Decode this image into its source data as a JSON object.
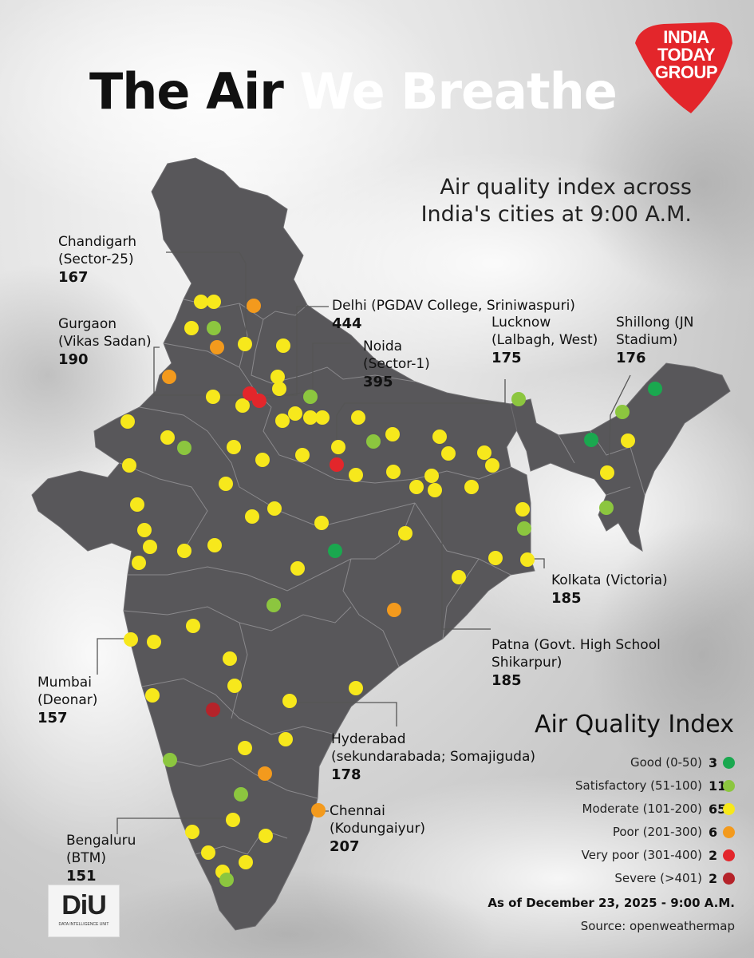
{
  "title": {
    "part1": "The Air",
    "part2": "We Breathe"
  },
  "subtitle": {
    "line1": "Air quality index across",
    "line2": "India's cities at 9:00 A.M."
  },
  "logo": {
    "line1": "INDIA",
    "line2": "TODAY",
    "line3": "GROUP"
  },
  "callouts": [
    {
      "id": "chandigarh",
      "name1": "Chandigarh",
      "name2": "(Sector-25)",
      "value": "167"
    },
    {
      "id": "gurgaon",
      "name1": "Gurgaon",
      "name2": "(Vikas Sadan)",
      "value": "190"
    },
    {
      "id": "delhi",
      "name1": "Delhi (PGDAV College, Sriniwaspuri)",
      "name2": "",
      "value": "444"
    },
    {
      "id": "noida",
      "name1": "Noida",
      "name2": "(Sector-1)",
      "value": "395"
    },
    {
      "id": "lucknow",
      "name1": "Lucknow",
      "name2": "(Lalbagh, West)",
      "value": "175"
    },
    {
      "id": "shillong",
      "name1": "Shillong (JN",
      "name2": "Stadium)",
      "value": "176"
    },
    {
      "id": "kolkata",
      "name1": "Kolkata (Victoria)",
      "name2": "",
      "value": "185"
    },
    {
      "id": "patna",
      "name1": "Patna (Govt. High School",
      "name2": "Shikarpur)",
      "value": "185"
    },
    {
      "id": "mumbai",
      "name1": "Mumbai",
      "name2": "(Deonar)",
      "value": "157"
    },
    {
      "id": "hyderabad",
      "name1": "Hyderabad",
      "name2": "(sekundarabada; Somajiguda)",
      "value": "178"
    },
    {
      "id": "chennai",
      "name1": "Chennai",
      "name2": "(Kodungaiyur)",
      "value": "207"
    },
    {
      "id": "bengaluru",
      "name1": "Bengaluru",
      "name2": "(BTM)",
      "value": "151"
    }
  ],
  "legend": {
    "title": "Air Quality Index",
    "items": [
      {
        "label": "Good (0-50)",
        "count": "3",
        "color": "#1aa84f"
      },
      {
        "label": "Satisfactory (51-100)",
        "count": "11",
        "color": "#8cc63f"
      },
      {
        "label": "Moderate (101-200)",
        "count": "65",
        "color": "#f7e81c"
      },
      {
        "label": "Poor (201-300)",
        "count": "6",
        "color": "#f39a1d"
      },
      {
        "label": "Very poor (301-400)",
        "count": "2",
        "color": "#e3262b"
      },
      {
        "label": "Severe (>401)",
        "count": "2",
        "color": "#b5232a"
      }
    ]
  },
  "as_of": "As of December 23, 2025 - 9:00 A.M.",
  "source": "Source: openweathermap",
  "diu": {
    "mark": "DiU",
    "sub": "DATA INTELLIGENCE UNIT"
  },
  "colors": {
    "map_fill": "#58575a",
    "map_border": "#8a898c",
    "leader_line": "#555555",
    "logo_red": "#e3262b"
  },
  "map_points": {
    "good": 3,
    "satisfactory": 11,
    "moderate": 65,
    "poor": 6,
    "very_poor": 2,
    "severe": 2
  }
}
